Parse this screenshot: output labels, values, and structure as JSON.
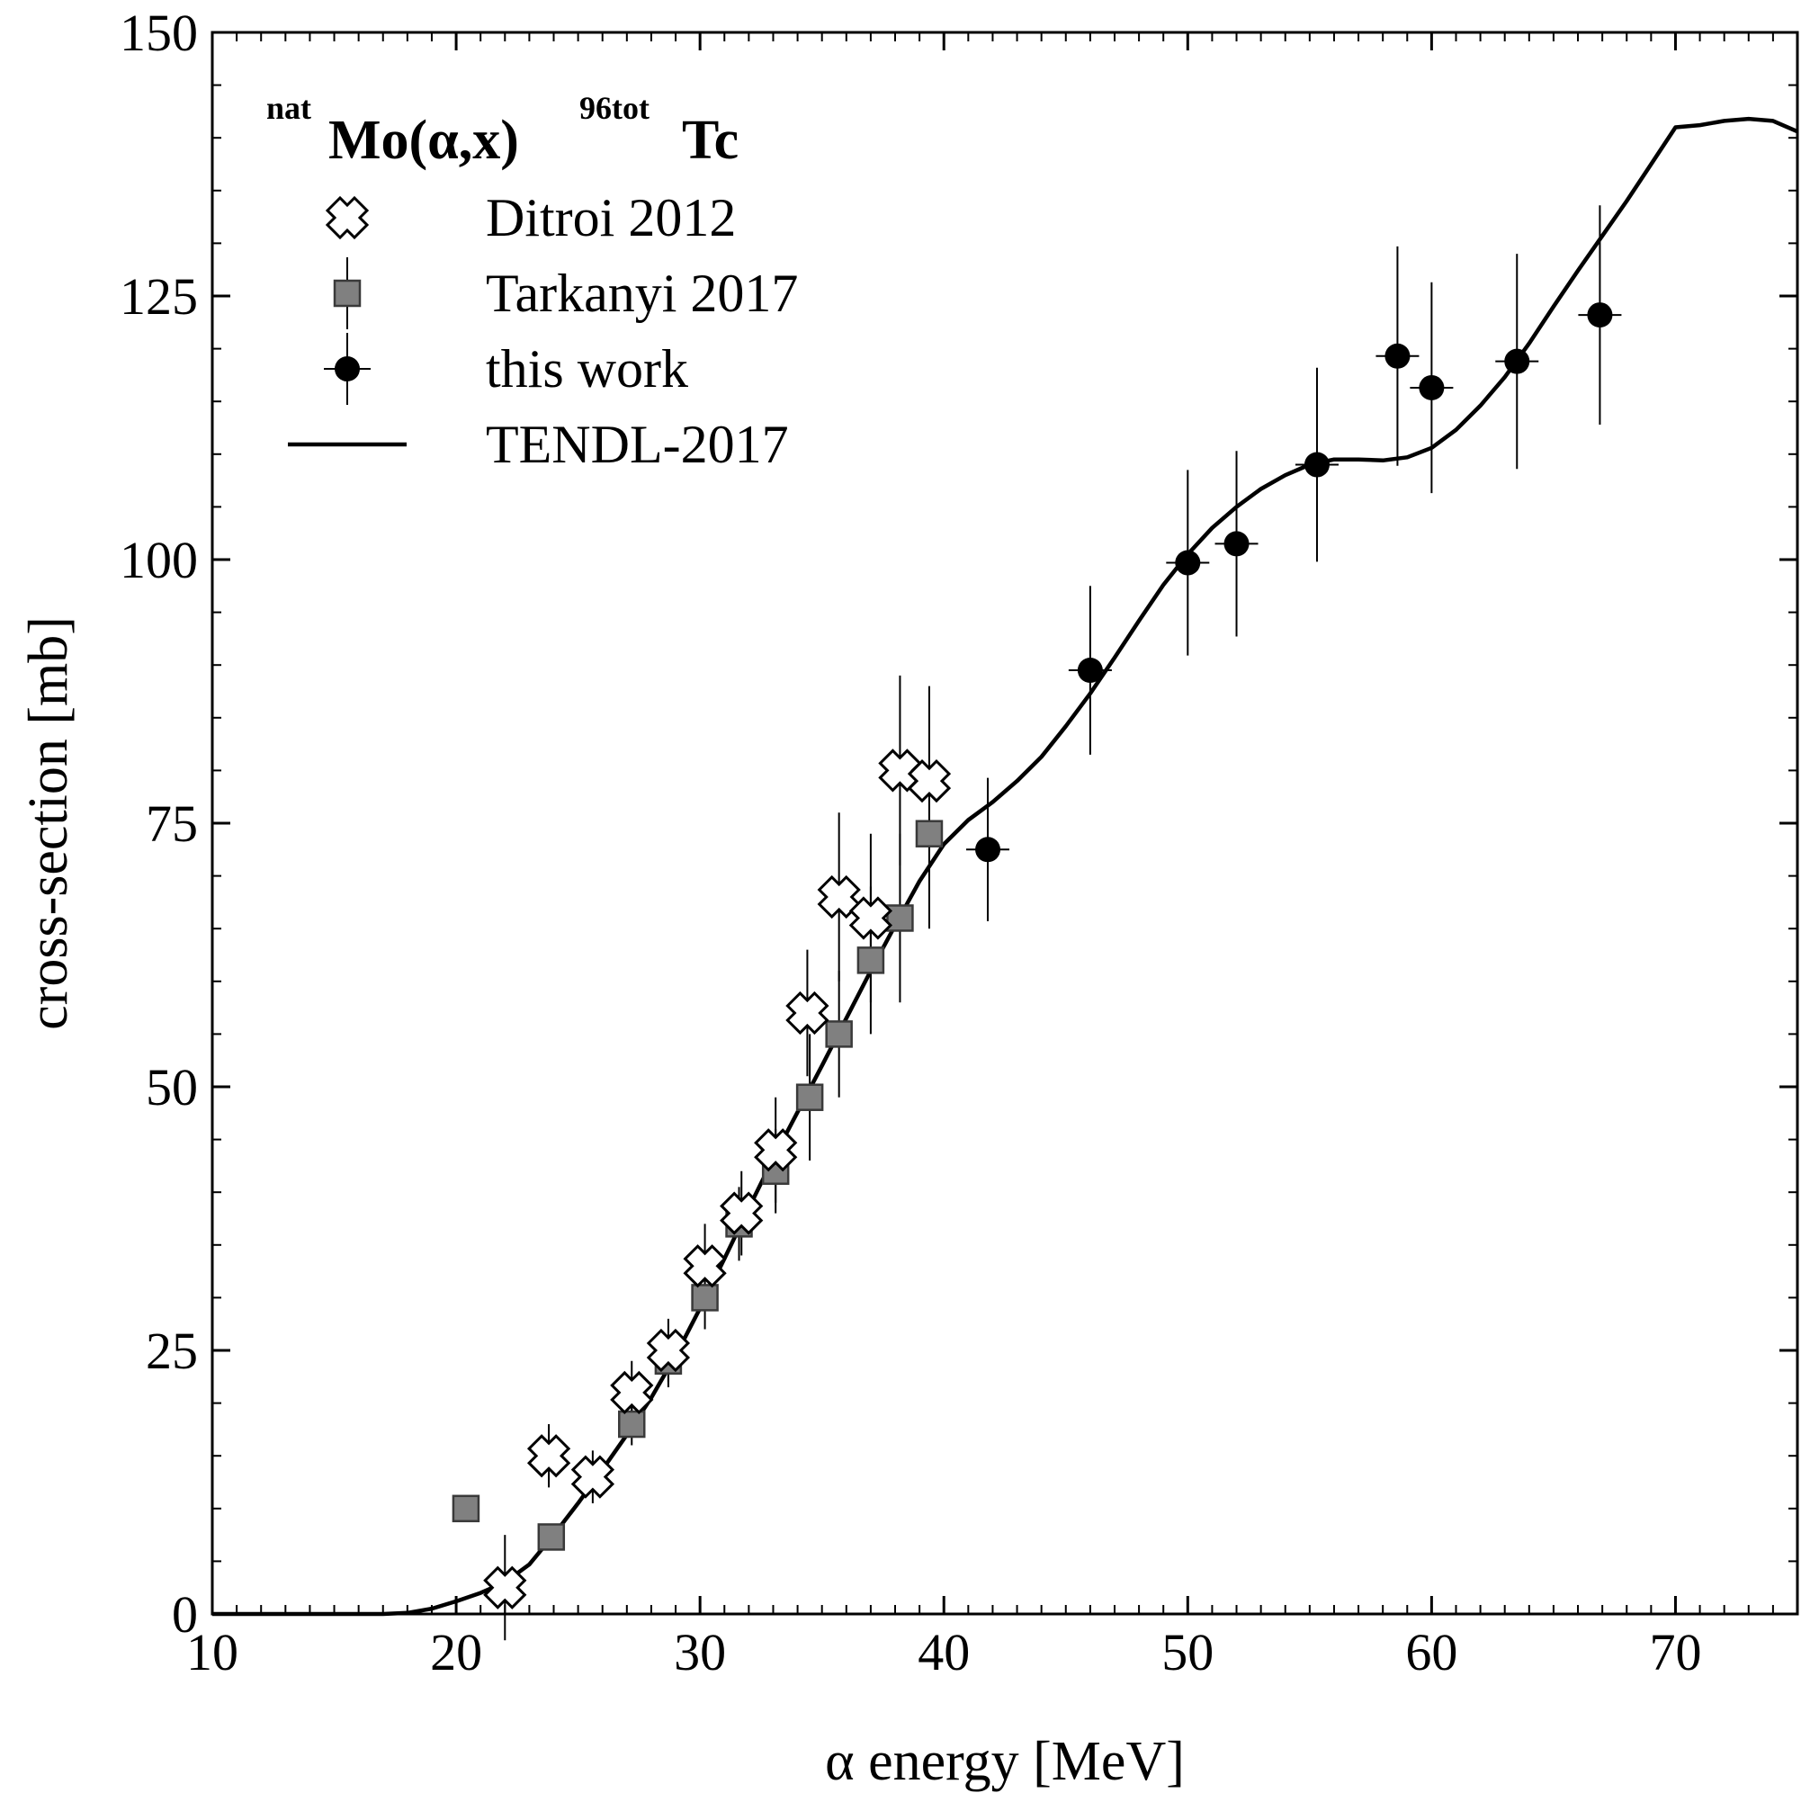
{
  "chart_data": {
    "type": "scatter",
    "title": {
      "pre_sup": "nat",
      "target": "Mo(α,x)",
      "mid_sup": "96tot",
      "product": "Tc"
    },
    "xlabel": "α energy [MeV]",
    "ylabel": "cross-section [mb]",
    "xlim": [
      10,
      75
    ],
    "ylim": [
      0,
      150
    ],
    "x_ticks": [
      10,
      20,
      30,
      40,
      50,
      60,
      70
    ],
    "y_ticks": [
      0,
      25,
      50,
      75,
      100,
      125,
      150
    ],
    "x_minor_step": 1,
    "y_minor_step": 5,
    "grid": false,
    "legend_position": "top-left",
    "series": [
      {
        "name": "Ditroi 2012",
        "marker": "white-cross",
        "points": [
          {
            "x": 22.0,
            "y": 2.5,
            "err": 5.0
          },
          {
            "x": 23.8,
            "y": 15.0,
            "err": 3.0
          },
          {
            "x": 25.6,
            "y": 13.0,
            "err": 2.5
          },
          {
            "x": 27.2,
            "y": 21.0,
            "err": 3.0
          },
          {
            "x": 28.7,
            "y": 25.0,
            "err": 3.0
          },
          {
            "x": 30.2,
            "y": 33.0,
            "err": 4.0
          },
          {
            "x": 31.7,
            "y": 38.0,
            "err": 4.0
          },
          {
            "x": 33.1,
            "y": 44.0,
            "err": 5.0
          },
          {
            "x": 34.4,
            "y": 57.0,
            "err": 6.0
          },
          {
            "x": 35.7,
            "y": 68.0,
            "err": 8.0
          },
          {
            "x": 37.0,
            "y": 66.0,
            "err": 8.0
          },
          {
            "x": 38.2,
            "y": 80.0,
            "err": 9.0
          },
          {
            "x": 39.4,
            "y": 79.0,
            "err": 9.0
          }
        ]
      },
      {
        "name": "Tarkanyi 2017",
        "marker": "gray-square",
        "points": [
          {
            "x": 20.4,
            "y": 10.0,
            "err": 0
          },
          {
            "x": 23.9,
            "y": 7.3,
            "err": 0
          },
          {
            "x": 27.2,
            "y": 18.0,
            "err": 2.0
          },
          {
            "x": 28.7,
            "y": 24.0,
            "err": 2.5
          },
          {
            "x": 30.2,
            "y": 30.0,
            "err": 3.0
          },
          {
            "x": 31.6,
            "y": 37.0,
            "err": 3.5
          },
          {
            "x": 33.1,
            "y": 42.0,
            "err": 4.0
          },
          {
            "x": 34.5,
            "y": 49.0,
            "err": 6.0
          },
          {
            "x": 35.7,
            "y": 55.0,
            "err": 6.0
          },
          {
            "x": 37.0,
            "y": 62.0,
            "err": 7.0
          },
          {
            "x": 38.2,
            "y": 66.0,
            "err": 8.0
          },
          {
            "x": 39.4,
            "y": 74.0,
            "err": 9.0
          }
        ]
      },
      {
        "name": "this work",
        "marker": "black-circle",
        "points": [
          {
            "x": 41.8,
            "y": 72.5,
            "err": 6.8
          },
          {
            "x": 46.0,
            "y": 89.5,
            "err": 8.0
          },
          {
            "x": 50.0,
            "y": 99.7,
            "err": 8.8
          },
          {
            "x": 52.0,
            "y": 101.5,
            "err": 8.8
          },
          {
            "x": 55.3,
            "y": 109.0,
            "err": 9.2
          },
          {
            "x": 58.6,
            "y": 119.3,
            "err": 10.4
          },
          {
            "x": 60.0,
            "y": 116.3,
            "err": 10.0
          },
          {
            "x": 63.5,
            "y": 118.8,
            "err": 10.2
          },
          {
            "x": 66.9,
            "y": 123.2,
            "err": 10.4
          }
        ]
      },
      {
        "name": "TENDL-2017",
        "marker": "line",
        "points": [
          {
            "x": 10,
            "y": 0
          },
          {
            "x": 17,
            "y": 0
          },
          {
            "x": 18,
            "y": 0.1
          },
          {
            "x": 19,
            "y": 0.5
          },
          {
            "x": 20,
            "y": 1.2
          },
          {
            "x": 21,
            "y": 2.0
          },
          {
            "x": 22,
            "y": 3.0
          },
          {
            "x": 23,
            "y": 4.7
          },
          {
            "x": 24,
            "y": 7.5
          },
          {
            "x": 25,
            "y": 10.5
          },
          {
            "x": 26,
            "y": 13.7
          },
          {
            "x": 27,
            "y": 17.0
          },
          {
            "x": 28,
            "y": 20.5
          },
          {
            "x": 29,
            "y": 24.5
          },
          {
            "x": 30,
            "y": 29.0
          },
          {
            "x": 31,
            "y": 33.7
          },
          {
            "x": 32,
            "y": 38.5
          },
          {
            "x": 33,
            "y": 43.2
          },
          {
            "x": 34,
            "y": 47.6
          },
          {
            "x": 35,
            "y": 52.0
          },
          {
            "x": 36,
            "y": 56.5
          },
          {
            "x": 37,
            "y": 61.0
          },
          {
            "x": 38,
            "y": 65.3
          },
          {
            "x": 39,
            "y": 69.5
          },
          {
            "x": 40,
            "y": 73.0
          },
          {
            "x": 41,
            "y": 75.3
          },
          {
            "x": 42,
            "y": 77.0
          },
          {
            "x": 43,
            "y": 79.0
          },
          {
            "x": 44,
            "y": 81.3
          },
          {
            "x": 45,
            "y": 84.2
          },
          {
            "x": 46,
            "y": 87.3
          },
          {
            "x": 47,
            "y": 90.7
          },
          {
            "x": 48,
            "y": 94.2
          },
          {
            "x": 49,
            "y": 97.6
          },
          {
            "x": 50,
            "y": 100.5
          },
          {
            "x": 51,
            "y": 103.0
          },
          {
            "x": 52,
            "y": 105.0
          },
          {
            "x": 53,
            "y": 106.7
          },
          {
            "x": 54,
            "y": 108.0
          },
          {
            "x": 55,
            "y": 109.0
          },
          {
            "x": 56,
            "y": 109.5
          },
          {
            "x": 57,
            "y": 109.5
          },
          {
            "x": 58,
            "y": 109.4
          },
          {
            "x": 59,
            "y": 109.7
          },
          {
            "x": 60,
            "y": 110.6
          },
          {
            "x": 61,
            "y": 112.3
          },
          {
            "x": 62,
            "y": 114.6
          },
          {
            "x": 63,
            "y": 117.3
          },
          {
            "x": 64,
            "y": 120.5
          },
          {
            "x": 65,
            "y": 124.0
          },
          {
            "x": 66,
            "y": 127.4
          },
          {
            "x": 67,
            "y": 130.7
          },
          {
            "x": 68,
            "y": 134.0
          },
          {
            "x": 69,
            "y": 137.5
          },
          {
            "x": 70,
            "y": 141.0
          },
          {
            "x": 71,
            "y": 141.2
          },
          {
            "x": 72,
            "y": 141.6
          },
          {
            "x": 73,
            "y": 141.8
          },
          {
            "x": 74,
            "y": 141.6
          },
          {
            "x": 75,
            "y": 140.6
          }
        ]
      }
    ]
  }
}
